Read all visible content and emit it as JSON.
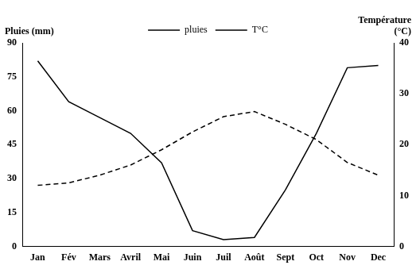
{
  "chart_data": {
    "type": "line",
    "categories": [
      "Jan",
      "Fév",
      "Mars",
      "Avril",
      "Mai",
      "Juin",
      "Juil",
      "Août",
      "Sept",
      "Oct",
      "Nov",
      "Dec"
    ],
    "series": [
      {
        "name": "pluies",
        "color": "#000000",
        "line_style": "solid",
        "marker": "none",
        "values": [
          82,
          64,
          57,
          50,
          37,
          7,
          3,
          4,
          25,
          50,
          79,
          80
        ]
      },
      {
        "name": "T°C",
        "color": "#000000",
        "line_style": "dashed",
        "marker": "none",
        "axis": "y2",
        "values": [
          12,
          12.5,
          14,
          16,
          19,
          22.5,
          25.5,
          26.5,
          24,
          21,
          16.5,
          14
        ]
      }
    ],
    "ylabel": "Pluies (mm)",
    "y2label": "Température (°C)",
    "ylim": [
      0,
      90
    ],
    "yticks": [
      0,
      15,
      30,
      45,
      60,
      75,
      90
    ],
    "y2lim": [
      0,
      40
    ],
    "y2ticks": [
      0,
      10,
      20,
      30,
      40
    ],
    "grid": false,
    "legend": "top"
  }
}
